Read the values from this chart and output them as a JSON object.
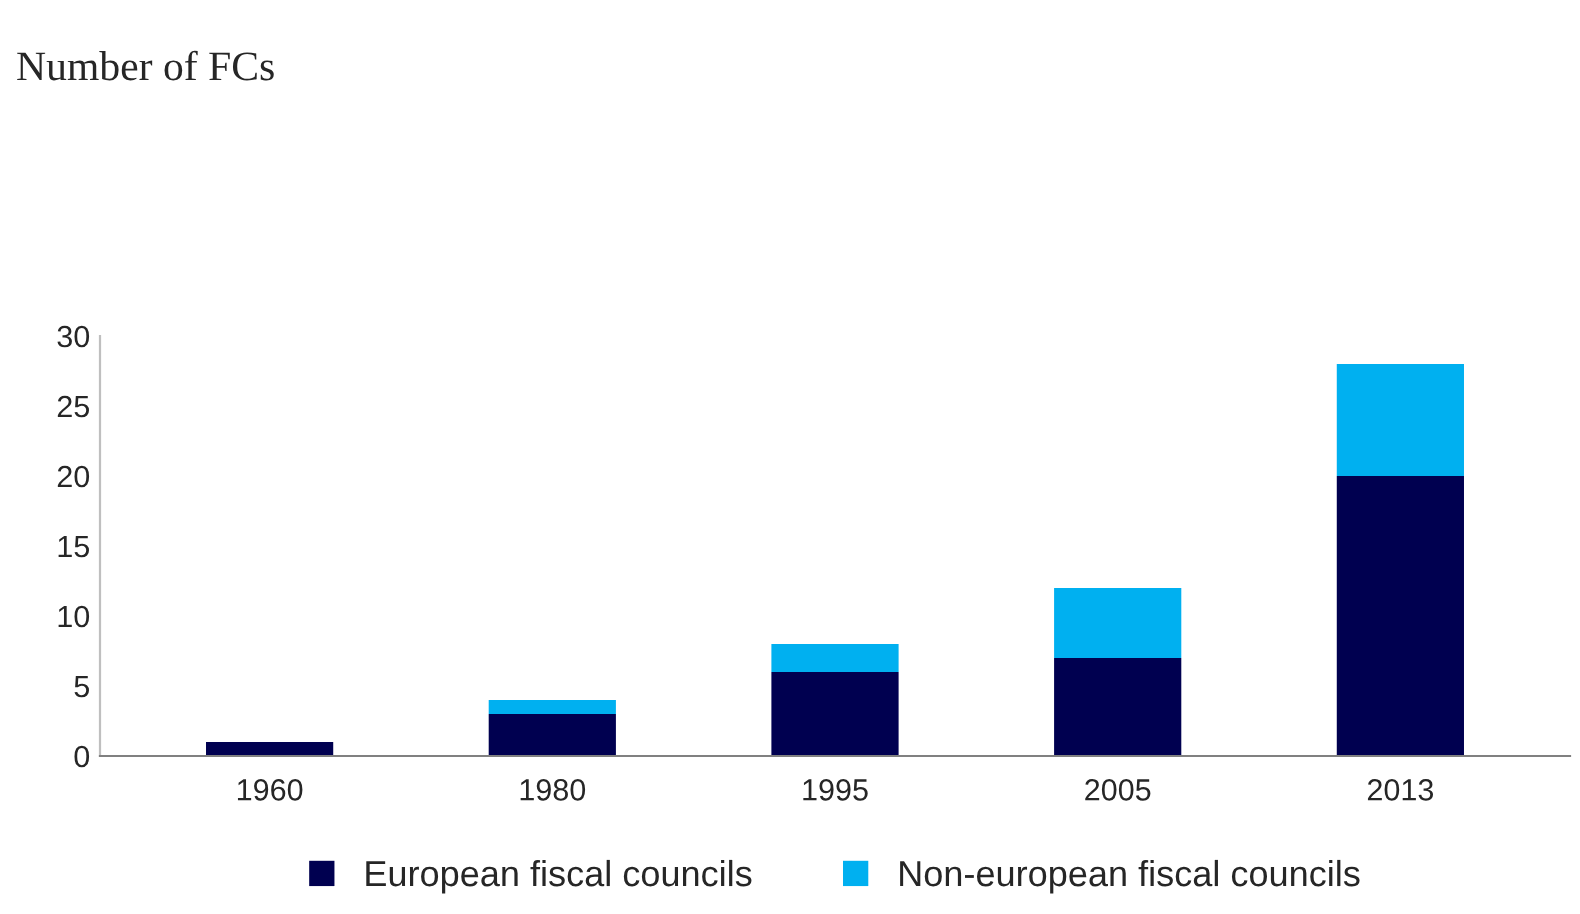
{
  "chart_data": {
    "type": "bar",
    "stacked": true,
    "title": "Number of FCs",
    "categories": [
      "1960",
      "1980",
      "1995",
      "2005",
      "2013"
    ],
    "series": [
      {
        "name": "European fiscal councils",
        "color": "#000050",
        "values": [
          1,
          3,
          6,
          7,
          20
        ]
      },
      {
        "name": "Non-european fiscal councils",
        "color": "#00b0f0",
        "values": [
          0,
          1,
          2,
          5,
          8
        ]
      }
    ],
    "ylim": [
      0,
      30
    ],
    "yticks": [
      0,
      5,
      10,
      15,
      20,
      25,
      30
    ],
    "grid": false,
    "legend": "bottom"
  }
}
